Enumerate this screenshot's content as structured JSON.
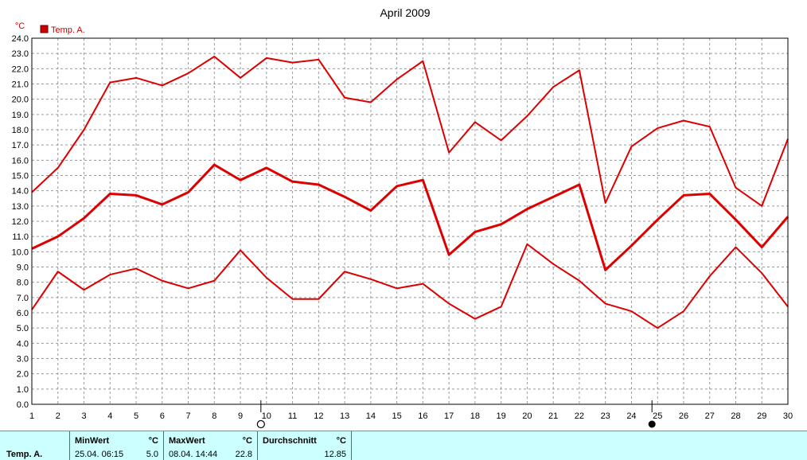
{
  "chart_data": {
    "type": "line",
    "title": "April 2009",
    "yunit": "°C",
    "ylim": [
      0,
      24
    ],
    "yticks": [
      "0.0",
      "1.0",
      "2.0",
      "3.0",
      "4.0",
      "5.0",
      "6.0",
      "7.0",
      "8.0",
      "9.0",
      "10.0",
      "11.0",
      "12.0",
      "13.0",
      "14.0",
      "15.0",
      "16.0",
      "17.0",
      "18.0",
      "19.0",
      "20.0",
      "21.0",
      "22.0",
      "23.0",
      "24.0"
    ],
    "x": [
      1,
      2,
      3,
      4,
      5,
      6,
      7,
      8,
      9,
      10,
      11,
      12,
      13,
      14,
      15,
      16,
      17,
      18,
      19,
      20,
      21,
      22,
      23,
      24,
      25,
      26,
      27,
      28,
      29,
      30
    ],
    "legend": [
      {
        "label": "Temp. A.",
        "color": "#dd0000"
      }
    ],
    "legend_position": "top-left",
    "grid": true,
    "series": [
      {
        "role": "max",
        "values": [
          13.9,
          15.5,
          18.0,
          21.1,
          21.4,
          20.9,
          21.7,
          22.8,
          21.4,
          22.7,
          22.4,
          22.6,
          20.1,
          19.8,
          21.3,
          22.5,
          16.5,
          18.5,
          17.3,
          18.9,
          20.8,
          21.9,
          13.2,
          16.9,
          18.1,
          18.6,
          18.2,
          14.2,
          13.0,
          17.4
        ]
      },
      {
        "role": "avg",
        "values": [
          10.2,
          11.0,
          12.2,
          13.8,
          13.7,
          13.1,
          13.9,
          15.7,
          14.7,
          15.5,
          14.6,
          14.4,
          13.6,
          12.7,
          14.3,
          14.7,
          9.8,
          11.3,
          11.8,
          12.8,
          13.6,
          14.4,
          8.8,
          10.4,
          12.1,
          13.7,
          13.8,
          12.1,
          10.3,
          12.3
        ]
      },
      {
        "role": "min",
        "values": [
          6.2,
          8.7,
          7.5,
          8.5,
          8.9,
          8.1,
          7.6,
          8.1,
          10.1,
          8.3,
          6.9,
          6.9,
          8.7,
          8.2,
          7.6,
          7.9,
          6.6,
          5.6,
          6.4,
          10.5,
          9.2,
          8.1,
          6.6,
          6.1,
          5.0,
          6.1,
          8.4,
          10.3,
          8.6,
          6.4
        ]
      }
    ],
    "moon_markers": [
      {
        "day": 10,
        "phase": "full-moon-icon"
      },
      {
        "day": 25,
        "phase": "new-moon-icon"
      }
    ]
  },
  "stats": {
    "sensor": "Temp. A.",
    "min": {
      "header": "MinWert",
      "unit": "°C",
      "date": "25.04.  06:15",
      "value": "5.0"
    },
    "max": {
      "header": "MaxWert",
      "unit": "°C",
      "date": "08.04.  14:44",
      "value": "22.8"
    },
    "avg": {
      "header": "Durchschnitt",
      "unit": "°C",
      "value": "12.85"
    }
  }
}
